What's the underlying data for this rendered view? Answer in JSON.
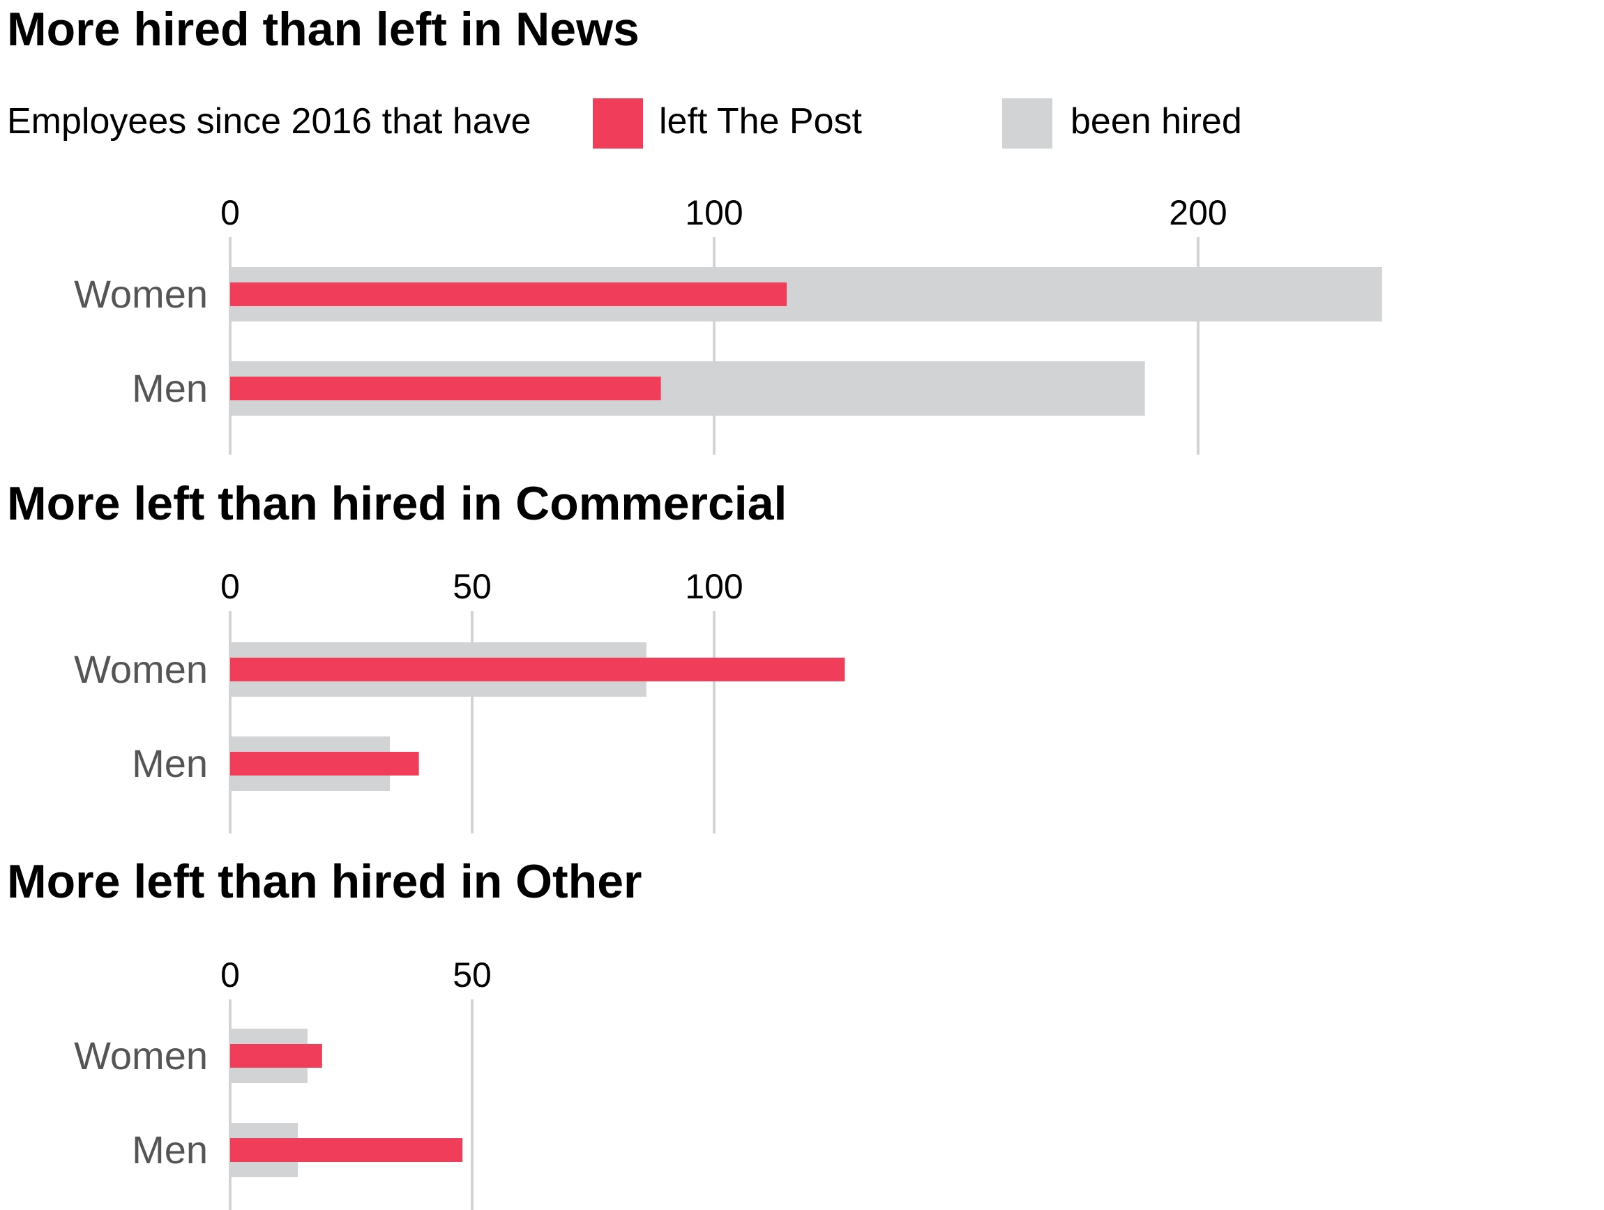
{
  "legend": {
    "intro": "Employees since 2016 that have",
    "items": [
      {
        "label": "left The Post",
        "color": "#f03e5a"
      },
      {
        "label": "been hired",
        "color": "#d2d3d5"
      }
    ]
  },
  "chart_data": [
    {
      "type": "bar",
      "orientation": "horizontal",
      "title": "More hired than left in News",
      "categories": [
        "Women",
        "Men"
      ],
      "xticks": [
        0,
        100,
        200
      ],
      "grid": true,
      "series": [
        {
          "name": "been hired",
          "color": "#d2d3d5",
          "values": [
            238,
            189
          ]
        },
        {
          "name": "left The Post",
          "color": "#f03e5a",
          "values": [
            115,
            89
          ]
        }
      ]
    },
    {
      "type": "bar",
      "orientation": "horizontal",
      "title": "More left than hired in Commercial",
      "categories": [
        "Women",
        "Men"
      ],
      "xticks": [
        0,
        50,
        100
      ],
      "grid": true,
      "series": [
        {
          "name": "been hired",
          "color": "#d2d3d5",
          "values": [
            86,
            33
          ]
        },
        {
          "name": "left The Post",
          "color": "#f03e5a",
          "values": [
            127,
            39
          ]
        }
      ]
    },
    {
      "type": "bar",
      "orientation": "horizontal",
      "title": "More left than hired in Other",
      "categories": [
        "Women",
        "Men"
      ],
      "xticks": [
        0,
        50
      ],
      "grid": true,
      "series": [
        {
          "name": "been hired",
          "color": "#d2d3d5",
          "values": [
            16,
            14
          ]
        },
        {
          "name": "left The Post",
          "color": "#f03e5a",
          "values": [
            19,
            48
          ]
        }
      ]
    }
  ]
}
